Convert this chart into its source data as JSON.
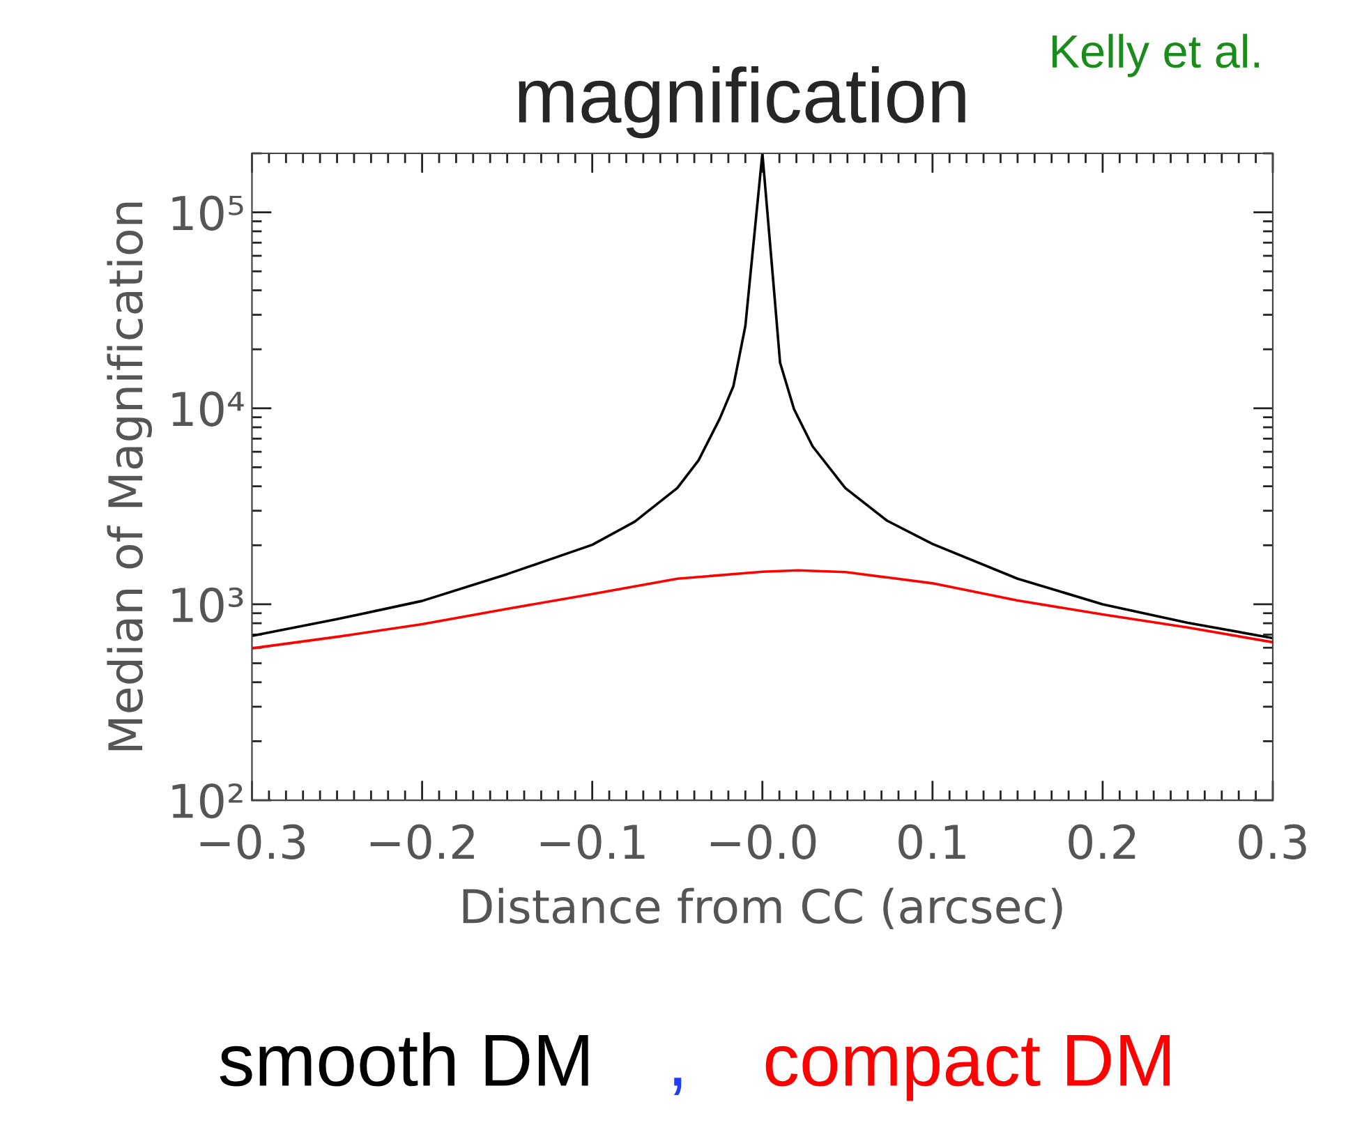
{
  "chart_data": {
    "type": "line",
    "title": "magnification",
    "xlabel": "Distance from CC (arcsec)",
    "ylabel": "Median of Magnification",
    "annotations": [
      "Kelly et al.",
      ","
    ],
    "log": "y",
    "legend": "bottom",
    "grid": false,
    "marker": "none",
    "line_style": "solid",
    "xlim": [
      -0.3,
      0.3
    ],
    "xticks": [
      {
        "value": -0.3,
        "label": "−0.3"
      },
      {
        "value": -0.2,
        "label": "−0.2"
      },
      {
        "value": -0.1,
        "label": "−0.1"
      },
      {
        "value": 0,
        "label": "−0.0"
      },
      0.1,
      0.2,
      0.3
    ],
    "ylim": [
      100,
      200000
    ],
    "yticks": [
      {
        "value": 100,
        "label": "10²"
      },
      {
        "value": 1000,
        "label": "10³"
      },
      {
        "value": 10000,
        "label": "10⁴"
      },
      {
        "value": 100000,
        "label": "10⁵"
      }
    ],
    "series": [
      {
        "name": "smooth DM",
        "color": "#000000",
        "x": [
          -0.3,
          -0.25,
          -0.2,
          -0.15,
          -0.1,
          -0.075,
          -0.05,
          -0.0375,
          -0.025,
          -0.017,
          -0.01,
          -0.0046,
          0,
          0.0063,
          0.0104,
          0.0186,
          0.0295,
          0.0487,
          0.0733,
          0.1,
          0.15,
          0.2,
          0.25,
          0.3
        ],
        "values": [
          690,
          839,
          1040,
          1425,
          2010,
          2640,
          3920,
          5430,
          8870,
          13000,
          26300,
          78600,
          200000,
          45500,
          17100,
          9900,
          6400,
          3920,
          2670,
          2030,
          1350,
          1000,
          804,
          672
        ]
      },
      {
        "name": "compact DM",
        "color": "#ff0000",
        "x": [
          -0.3,
          -0.25,
          -0.2,
          -0.15,
          -0.1,
          -0.05,
          0,
          0.021,
          0.049,
          0.1,
          0.15,
          0.2,
          0.25,
          0.3
        ],
        "values": [
          596,
          682,
          791,
          947,
          1128,
          1350,
          1466,
          1489,
          1460,
          1279,
          1045,
          887,
          761,
          640
        ]
      }
    ]
  }
}
